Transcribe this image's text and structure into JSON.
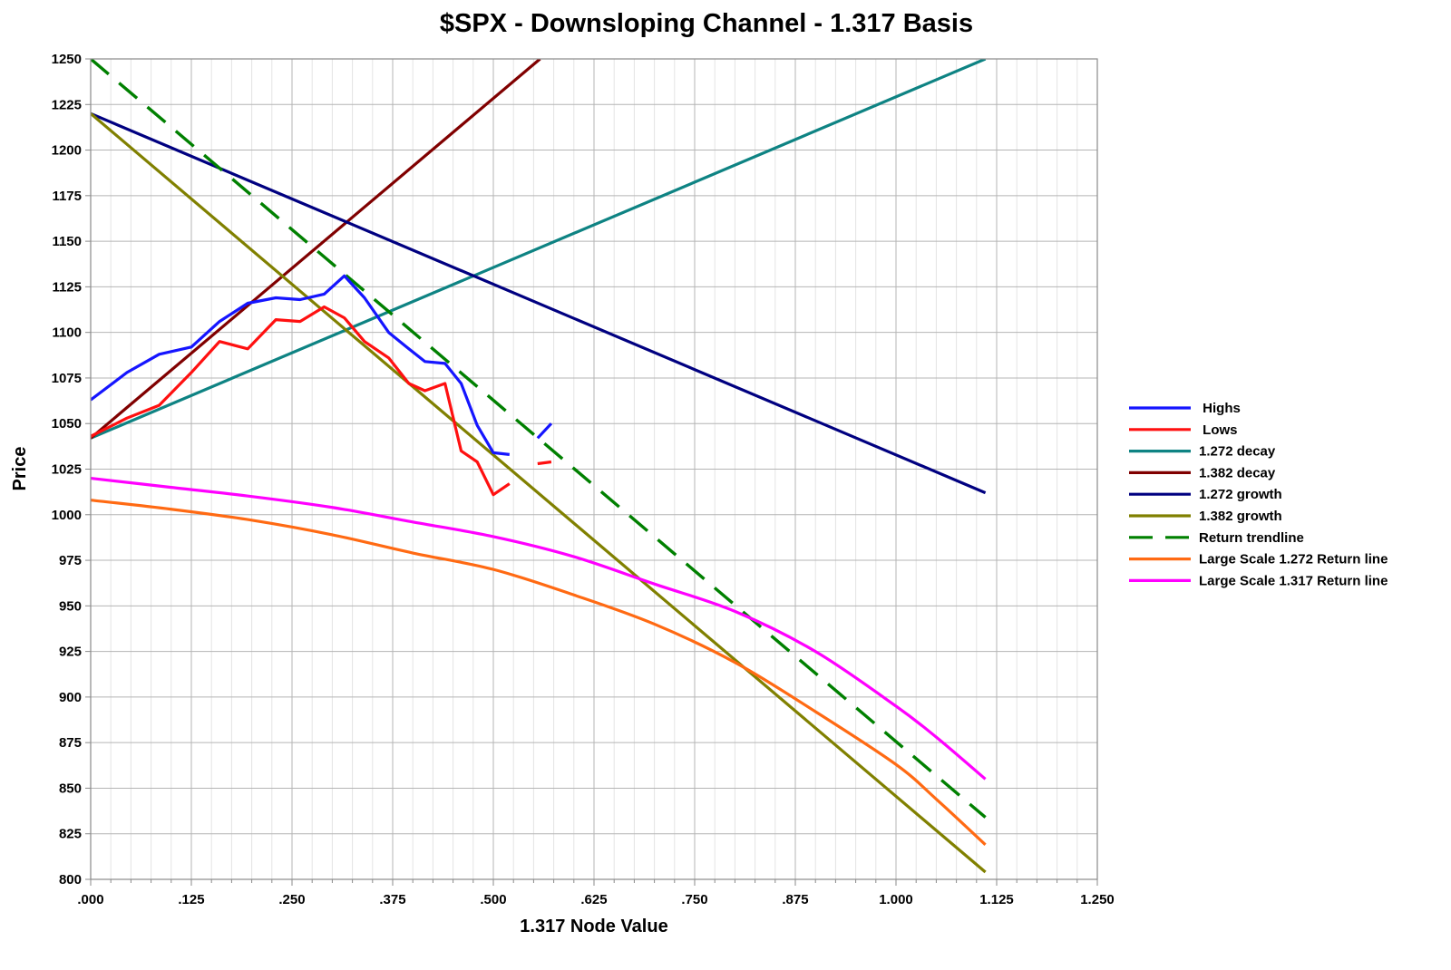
{
  "chart_data": {
    "type": "line",
    "title": "$SPX - Downsloping Channel - 1.317 Basis",
    "xlabel": "1.317 Node Value",
    "ylabel": "Price",
    "xlim": [
      0,
      1.25
    ],
    "ylim": [
      800,
      1250
    ],
    "x_ticks": [
      0,
      0.125,
      0.25,
      0.375,
      0.5,
      0.625,
      0.75,
      0.875,
      1.0,
      1.125,
      1.25
    ],
    "x_tick_labels": [
      ".000",
      ".125",
      ".250",
      ".375",
      ".500",
      ".625",
      ".750",
      ".875",
      "1.000",
      "1.125",
      "1.250"
    ],
    "x_minor_step": 0.025,
    "y_ticks": [
      800,
      825,
      850,
      875,
      900,
      925,
      950,
      975,
      1000,
      1025,
      1050,
      1075,
      1100,
      1125,
      1150,
      1175,
      1200,
      1225,
      1250
    ],
    "y_tick_labels": [
      "800",
      "825",
      "850",
      "875",
      "900",
      "925",
      "950",
      "975",
      "1000",
      "1025",
      "1050",
      "1075",
      "1100",
      "1125",
      "1150",
      "1175",
      "1200",
      "1225",
      "1250"
    ],
    "grid": true,
    "legend_position": "right",
    "series": [
      {
        "name": "Highs",
        "label": " Highs",
        "color": "#1515ff",
        "dash": false,
        "segments": [
          [
            [
              0.0,
              1063
            ],
            [
              0.045,
              1078
            ],
            [
              0.085,
              1088
            ],
            [
              0.125,
              1092
            ],
            [
              0.16,
              1106
            ],
            [
              0.195,
              1116
            ],
            [
              0.23,
              1119
            ],
            [
              0.26,
              1118
            ],
            [
              0.29,
              1121
            ],
            [
              0.315,
              1131
            ],
            [
              0.34,
              1119
            ],
            [
              0.37,
              1100
            ],
            [
              0.395,
              1091
            ],
            [
              0.415,
              1084
            ],
            [
              0.44,
              1083
            ],
            [
              0.46,
              1072
            ],
            [
              0.48,
              1049
            ],
            [
              0.5,
              1034
            ],
            [
              0.52,
              1033
            ]
          ],
          [
            [
              0.555,
              1042
            ],
            [
              0.572,
              1050
            ]
          ]
        ]
      },
      {
        "name": "Lows",
        "label": " Lows",
        "color": "#ff1010",
        "dash": false,
        "segments": [
          [
            [
              0.0,
              1043
            ],
            [
              0.045,
              1053
            ],
            [
              0.085,
              1060
            ],
            [
              0.125,
              1078
            ],
            [
              0.16,
              1095
            ],
            [
              0.195,
              1091
            ],
            [
              0.23,
              1107
            ],
            [
              0.26,
              1106
            ],
            [
              0.29,
              1114
            ],
            [
              0.315,
              1108
            ],
            [
              0.34,
              1095
            ],
            [
              0.37,
              1086
            ],
            [
              0.395,
              1072
            ],
            [
              0.415,
              1068
            ],
            [
              0.44,
              1072
            ],
            [
              0.46,
              1035
            ],
            [
              0.48,
              1029
            ],
            [
              0.5,
              1011
            ],
            [
              0.52,
              1017
            ]
          ],
          [
            [
              0.555,
              1028
            ],
            [
              0.572,
              1029
            ]
          ]
        ]
      },
      {
        "name": "1.272 decay",
        "label": "1.272 decay",
        "color": "#0e8383",
        "dash": false,
        "kind": "line",
        "x": [
          0.0,
          1.111
        ],
        "y": [
          1042,
          1250
        ]
      },
      {
        "name": "1.382 decay",
        "label": "1.382 decay",
        "color": "#800000",
        "dash": false,
        "kind": "line",
        "x": [
          0.0,
          0.558
        ],
        "y": [
          1042,
          1250
        ]
      },
      {
        "name": "1.272 growth",
        "label": "1.272 growth",
        "color": "#000080",
        "dash": false,
        "kind": "line",
        "x": [
          0.0,
          1.111
        ],
        "y": [
          1220,
          1012
        ]
      },
      {
        "name": "1.382 growth",
        "label": "1.382 growth",
        "color": "#808000",
        "dash": false,
        "kind": "line",
        "x": [
          0.0,
          1.111
        ],
        "y": [
          1220,
          804
        ]
      },
      {
        "name": "Return trendline",
        "label": "Return trendline",
        "color": "#008000",
        "dash": true,
        "kind": "line",
        "x": [
          0.0,
          1.111
        ],
        "y": [
          1250,
          834
        ]
      },
      {
        "name": "Large Scale 1.272 Return line",
        "label": "Large Scale 1.272 Return line",
        "color": "#ff6a13",
        "dash": false,
        "kind": "curve",
        "x": [
          0.0,
          0.1,
          0.2,
          0.3,
          0.4,
          0.5,
          0.6,
          0.7,
          0.8,
          0.9,
          1.0,
          1.05,
          1.111
        ],
        "y": [
          1008,
          1003,
          997,
          989,
          979,
          970,
          956,
          940,
          919,
          892,
          863,
          844,
          819
        ]
      },
      {
        "name": "Large Scale 1.317 Return line",
        "label": "Large Scale 1.317 Return line",
        "color": "#ff00ff",
        "dash": false,
        "kind": "curve",
        "x": [
          0.0,
          0.1,
          0.2,
          0.3,
          0.4,
          0.5,
          0.6,
          0.7,
          0.8,
          0.9,
          1.0,
          1.05,
          1.111
        ],
        "y": [
          1020,
          1015,
          1010,
          1004,
          996,
          988,
          977,
          962,
          947,
          925,
          895,
          878,
          855
        ]
      }
    ]
  }
}
